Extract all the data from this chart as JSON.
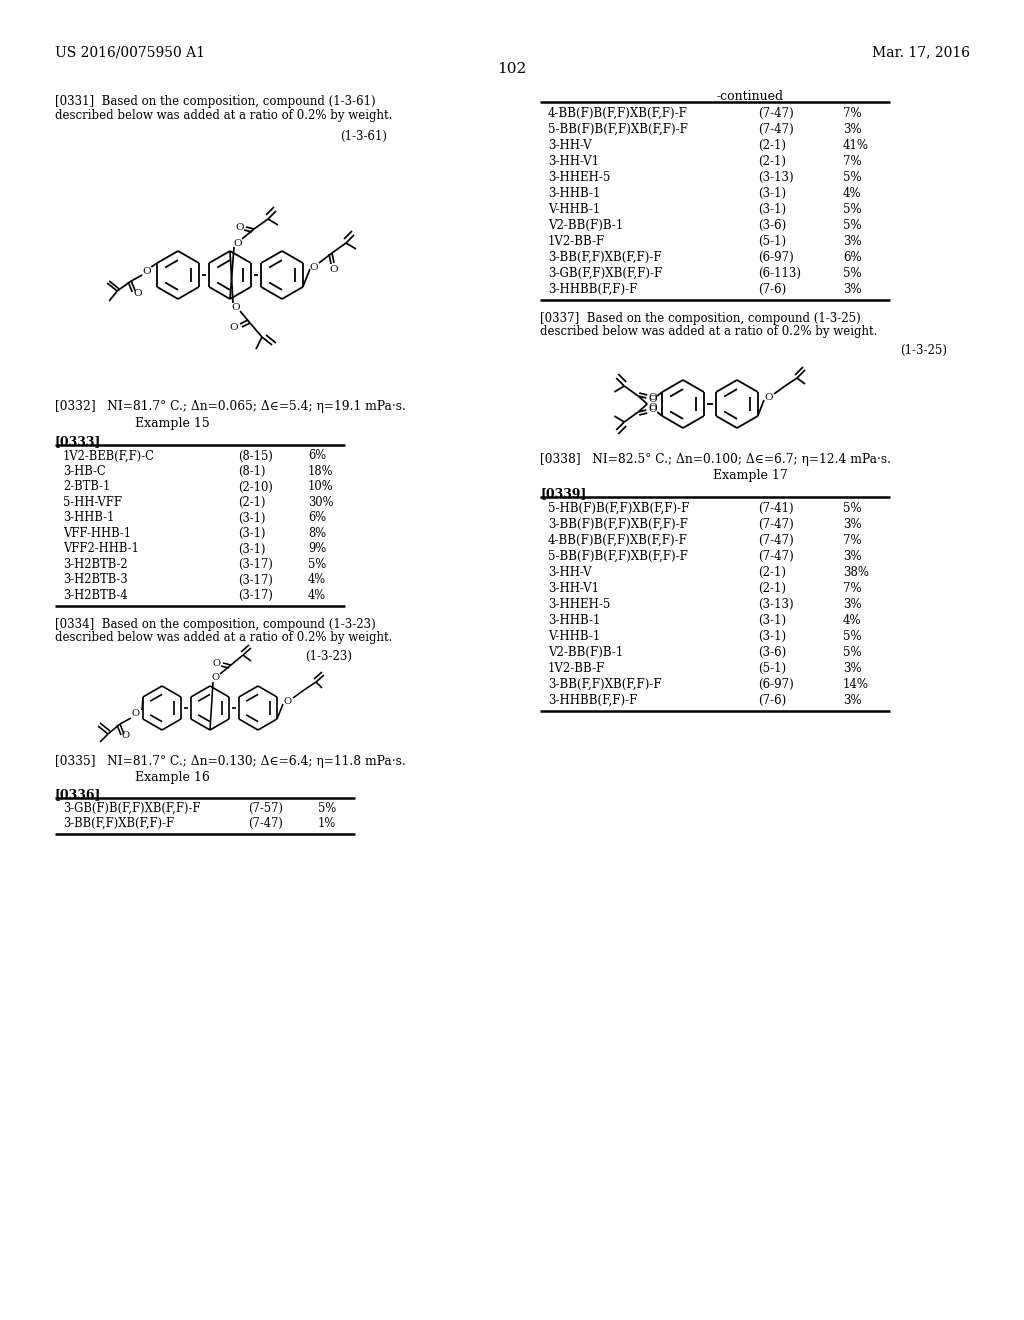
{
  "header_left": "US 2016/0075950 A1",
  "header_right": "Mar. 17, 2016",
  "page_number": "102",
  "bg_color": "#ffffff",
  "continued_label": "-continued",
  "continued_table_rows": [
    [
      "4-BB(F)B(F,F)XB(F,F)-F",
      "(7-47)",
      "7%"
    ],
    [
      "5-BB(F)B(F,F)XB(F,F)-F",
      "(7-47)",
      "3%"
    ],
    [
      "3-HH-V",
      "(2-1)",
      "41%"
    ],
    [
      "3-HH-V1",
      "(2-1)",
      "7%"
    ],
    [
      "3-HHEH-5",
      "(3-13)",
      "5%"
    ],
    [
      "3-HHB-1",
      "(3-1)",
      "4%"
    ],
    [
      "V-HHB-1",
      "(3-1)",
      "5%"
    ],
    [
      "V2-BB(F)B-1",
      "(3-6)",
      "5%"
    ],
    [
      "1V2-BB-F",
      "(5-1)",
      "3%"
    ],
    [
      "3-BB(F,F)XB(F,F)-F",
      "(6-97)",
      "6%"
    ],
    [
      "3-GB(F,F)XB(F,F)-F",
      "(6-113)",
      "5%"
    ],
    [
      "3-HHBB(F,F)-F",
      "(7-6)",
      "3%"
    ]
  ],
  "p0331_line1": "[0331]  Based on the composition, compound (1-3-61)",
  "p0331_line2": "described below was added at a ratio of 0.2% by weight.",
  "compound_label_61": "(1-3-61)",
  "p0332": "[0332]   NI=81.7° C.; Δn=0.065; Δ∈=5.4; η=19.1 mPa·s.",
  "example15": "Example 15",
  "p0333_label": "[0333]",
  "table0333_rows": [
    [
      "1V2-BEB(F,F)-C",
      "(8-15)",
      "6%"
    ],
    [
      "3-HB-C",
      "(8-1)",
      "18%"
    ],
    [
      "2-BTB-1",
      "(2-10)",
      "10%"
    ],
    [
      "5-HH-VFF",
      "(2-1)",
      "30%"
    ],
    [
      "3-HHB-1",
      "(3-1)",
      "6%"
    ],
    [
      "VFF-HHB-1",
      "(3-1)",
      "8%"
    ],
    [
      "VFF2-HHB-1",
      "(3-1)",
      "9%"
    ],
    [
      "3-H2BTB-2",
      "(3-17)",
      "5%"
    ],
    [
      "3-H2BTB-3",
      "(3-17)",
      "4%"
    ],
    [
      "3-H2BTB-4",
      "(3-17)",
      "4%"
    ]
  ],
  "p0334_line1": "[0334]  Based on the composition, compound (1-3-23)",
  "p0334_line2": "described below was added at a ratio of 0.2% by weight.",
  "compound_label_23": "(1-3-23)",
  "p0335": "[0335]   NI=81.7° C.; Δn=0.130; Δ∈=6.4; η=11.8 mPa·s.",
  "example16": "Example 16",
  "p0336_label": "[0336]",
  "table0336_rows": [
    [
      "3-GB(F)B(F,F)XB(F,F)-F",
      "(7-57)",
      "5%"
    ],
    [
      "3-BB(F,F)XB(F,F)-F",
      "(7-47)",
      "1%"
    ]
  ],
  "p0337_line1": "[0337]  Based on the composition, compound (1-3-25)",
  "p0337_line2": "described below was added at a ratio of 0.2% by weight.",
  "compound_label_25": "(1-3-25)",
  "p0338": "[0338]   NI=82.5° C.; Δn=0.100; Δ∈=6.7; η=12.4 mPa·s.",
  "example17": "Example 17",
  "p0339_label": "[0339]",
  "table0339_rows": [
    [
      "5-HB(F)B(F,F)XB(F,F)-F",
      "(7-41)",
      "5%"
    ],
    [
      "3-BB(F)B(F,F)XB(F,F)-F",
      "(7-47)",
      "3%"
    ],
    [
      "4-BB(F)B(F,F)XB(F,F)-F",
      "(7-47)",
      "7%"
    ],
    [
      "5-BB(F)B(F,F)XB(F,F)-F",
      "(7-47)",
      "3%"
    ],
    [
      "3-HH-V",
      "(2-1)",
      "38%"
    ],
    [
      "3-HH-V1",
      "(2-1)",
      "7%"
    ],
    [
      "3-HHEH-5",
      "(3-13)",
      "3%"
    ],
    [
      "3-HHB-1",
      "(3-1)",
      "4%"
    ],
    [
      "V-HHB-1",
      "(3-1)",
      "5%"
    ],
    [
      "V2-BB(F)B-1",
      "(3-6)",
      "5%"
    ],
    [
      "1V2-BB-F",
      "(5-1)",
      "3%"
    ],
    [
      "3-BB(F,F)XB(F,F)-F",
      "(6-97)",
      "14%"
    ],
    [
      "3-HHBB(F,F)-F",
      "(7-6)",
      "3%"
    ]
  ]
}
